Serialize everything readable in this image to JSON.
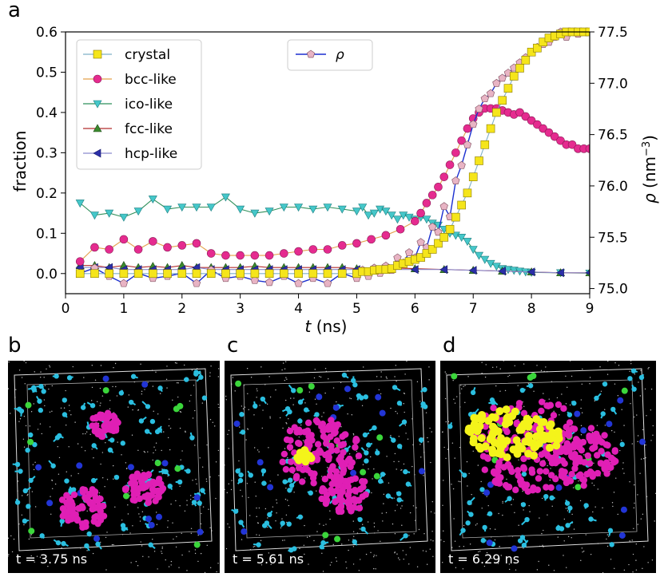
{
  "figure": {
    "panel_a_letter": "a",
    "panel_b_letter": "b",
    "panel_c_letter": "c",
    "panel_d_letter": "d",
    "snapshots": [
      {
        "label": "t = 3.75 ns"
      },
      {
        "label": "t = 5.61 ns"
      },
      {
        "label": "t = 6.29 ns"
      }
    ]
  },
  "colors": {
    "crystal": "#f5e51b",
    "bcc": "#e52b8f",
    "ico": "#45c7c9",
    "fcc": "#3b8a2e",
    "hcp": "#2b2fa8",
    "rho_line": "#1b2fd0",
    "rho_marker": "#e8b4c4"
  },
  "chart_data": {
    "type": "line",
    "xlabel_italic": "t",
    "xlabel_unit": " (ns)",
    "ylabel": "fraction",
    "y2label_symbol": "ρ",
    "y2label_unit": "(nm",
    "y2label_exp": "−3",
    "xlim": [
      0,
      9
    ],
    "ylim": [
      -0.05,
      0.6
    ],
    "y2lim": [
      74.95,
      77.5
    ],
    "xticks": [
      "0",
      "1",
      "2",
      "3",
      "4",
      "5",
      "6",
      "7",
      "8",
      "9"
    ],
    "yticks": [
      "0.0",
      "0.1",
      "0.2",
      "0.3",
      "0.4",
      "0.5",
      "0.6"
    ],
    "y2ticks": [
      "75.0",
      "75.5",
      "76.0",
      "76.5",
      "77.0",
      "77.5"
    ],
    "legend_left": [
      "crystal",
      "bcc-like",
      "ico-like",
      "fcc-like",
      "hcp-like"
    ],
    "legend_right": [
      "ρ"
    ],
    "series": [
      {
        "name": "crystal",
        "axis": "left",
        "x": [
          0.25,
          0.5,
          0.75,
          1,
          1.25,
          1.5,
          1.75,
          2,
          2.25,
          2.5,
          2.75,
          3,
          3.25,
          3.5,
          3.75,
          4,
          4.25,
          4.5,
          4.75,
          5,
          5.1,
          5.2,
          5.3,
          5.4,
          5.5,
          5.6,
          5.7,
          5.8,
          5.9,
          6,
          6.1,
          6.2,
          6.3,
          6.4,
          6.5,
          6.6,
          6.7,
          6.8,
          6.9,
          7,
          7.1,
          7.2,
          7.3,
          7.4,
          7.5,
          7.6,
          7.7,
          7.8,
          7.9,
          8,
          8.1,
          8.2,
          8.3,
          8.4,
          8.5,
          8.6,
          8.7,
          8.8,
          8.9,
          9
        ],
        "y": [
          0,
          0,
          0,
          0,
          0,
          0,
          0,
          0,
          0,
          0,
          0,
          0,
          0,
          0,
          0,
          0,
          0,
          0,
          0,
          0,
          0.005,
          0.005,
          0.008,
          0.01,
          0.01,
          0.012,
          0.02,
          0.025,
          0.03,
          0.035,
          0.04,
          0.05,
          0.06,
          0.075,
          0.09,
          0.11,
          0.14,
          0.17,
          0.2,
          0.24,
          0.28,
          0.32,
          0.36,
          0.4,
          0.43,
          0.46,
          0.49,
          0.51,
          0.53,
          0.55,
          0.56,
          0.575,
          0.585,
          0.59,
          0.595,
          0.6,
          0.6,
          0.6,
          0.6,
          0.6
        ]
      },
      {
        "name": "bcc-like",
        "axis": "left",
        "x": [
          0.25,
          0.5,
          0.75,
          1,
          1.25,
          1.5,
          1.75,
          2,
          2.25,
          2.5,
          2.75,
          3,
          3.25,
          3.5,
          3.75,
          4,
          4.25,
          4.5,
          4.75,
          5,
          5.25,
          5.5,
          5.75,
          6,
          6.1,
          6.2,
          6.3,
          6.4,
          6.5,
          6.6,
          6.7,
          6.8,
          6.9,
          7,
          7.1,
          7.2,
          7.3,
          7.4,
          7.5,
          7.6,
          7.7,
          7.8,
          7.9,
          8,
          8.1,
          8.2,
          8.3,
          8.4,
          8.5,
          8.6,
          8.7,
          8.8,
          8.9,
          9
        ],
        "y": [
          0.03,
          0.065,
          0.06,
          0.085,
          0.06,
          0.08,
          0.065,
          0.07,
          0.075,
          0.05,
          0.045,
          0.045,
          0.045,
          0.045,
          0.05,
          0.055,
          0.06,
          0.06,
          0.07,
          0.075,
          0.085,
          0.095,
          0.11,
          0.13,
          0.15,
          0.175,
          0.195,
          0.215,
          0.24,
          0.27,
          0.3,
          0.33,
          0.36,
          0.385,
          0.4,
          0.41,
          0.41,
          0.41,
          0.405,
          0.4,
          0.395,
          0.4,
          0.39,
          0.38,
          0.37,
          0.36,
          0.35,
          0.34,
          0.33,
          0.32,
          0.32,
          0.31,
          0.31,
          0.31
        ]
      },
      {
        "name": "ico-like",
        "axis": "left",
        "x": [
          0.25,
          0.5,
          0.75,
          1,
          1.25,
          1.5,
          1.75,
          2,
          2.25,
          2.5,
          2.75,
          3,
          3.25,
          3.5,
          3.75,
          4,
          4.25,
          4.5,
          4.75,
          5,
          5.1,
          5.2,
          5.3,
          5.4,
          5.5,
          5.6,
          5.7,
          5.8,
          5.9,
          6,
          6.1,
          6.2,
          6.3,
          6.4,
          6.5,
          6.6,
          6.7,
          6.8,
          6.9,
          7,
          7.1,
          7.2,
          7.3,
          7.4,
          7.5,
          7.6,
          7.7,
          7.8,
          7.9,
          8,
          8.5,
          9
        ],
        "y": [
          0.175,
          0.145,
          0.15,
          0.14,
          0.155,
          0.185,
          0.16,
          0.165,
          0.165,
          0.165,
          0.19,
          0.16,
          0.15,
          0.155,
          0.165,
          0.165,
          0.16,
          0.165,
          0.16,
          0.155,
          0.165,
          0.145,
          0.15,
          0.16,
          0.155,
          0.145,
          0.135,
          0.145,
          0.14,
          0.135,
          0.14,
          0.135,
          0.125,
          0.12,
          0.11,
          0.1,
          0.095,
          0.09,
          0.08,
          0.06,
          0.045,
          0.035,
          0.025,
          0.018,
          0.012,
          0.01,
          0.008,
          0.006,
          0.004,
          0.003,
          0.002,
          0.001
        ]
      },
      {
        "name": "fcc-like",
        "axis": "left",
        "x": [
          0.25,
          0.5,
          0.75,
          1,
          1.25,
          1.5,
          1.75,
          2,
          2.25,
          2.5,
          2.75,
          3,
          3.25,
          3.5,
          3.75,
          4,
          4.25,
          4.5,
          4.75,
          5,
          5.5,
          6,
          6.5,
          7,
          7.5,
          8,
          8.5,
          9
        ],
        "y": [
          0.02,
          0.02,
          0.015,
          0.02,
          0.015,
          0.018,
          0.015,
          0.02,
          0.015,
          0.015,
          0.015,
          0.015,
          0.018,
          0.015,
          0.015,
          0.015,
          0.015,
          0.015,
          0.015,
          0.012,
          0.015,
          0.012,
          0.01,
          0.008,
          0.006,
          0.004,
          0.002,
          0.002
        ]
      },
      {
        "name": "hcp-like",
        "axis": "left",
        "x": [
          0.25,
          0.5,
          0.75,
          1,
          1.25,
          1.5,
          1.75,
          2,
          2.25,
          2.5,
          2.75,
          3,
          3.25,
          3.5,
          3.75,
          4,
          4.25,
          4.5,
          4.75,
          5,
          5.5,
          6,
          6.5,
          7,
          7.5,
          8,
          8.5,
          9
        ],
        "y": [
          0.015,
          0.015,
          0.015,
          0.01,
          0.01,
          0.01,
          0.01,
          0.01,
          0.015,
          0.01,
          0.01,
          0.01,
          0.01,
          0.01,
          0.01,
          0.01,
          0.01,
          0.01,
          0.01,
          0.01,
          0.01,
          0.01,
          0.01,
          0.008,
          0.006,
          0.004,
          0.002,
          0.002
        ]
      },
      {
        "name": "ρ",
        "axis": "right",
        "x": [
          0.25,
          0.5,
          0.75,
          1,
          1.25,
          1.5,
          1.75,
          2,
          2.25,
          2.5,
          2.75,
          3,
          3.25,
          3.5,
          3.75,
          4,
          4.25,
          4.5,
          4.75,
          5,
          5.1,
          5.2,
          5.3,
          5.4,
          5.5,
          5.6,
          5.7,
          5.8,
          5.9,
          6,
          6.1,
          6.2,
          6.3,
          6.4,
          6.5,
          6.6,
          6.7,
          6.8,
          6.9,
          7,
          7.1,
          7.2,
          7.3,
          7.4,
          7.5,
          7.6,
          7.7,
          7.8,
          7.9,
          8,
          8.1,
          8.2,
          8.3,
          8.4,
          8.5,
          8.6,
          8.7,
          8.8,
          8.9,
          9
        ],
        "y": [
          75.15,
          75.2,
          75.12,
          75.05,
          75.15,
          75.1,
          75.12,
          75.15,
          75.05,
          75.18,
          75.1,
          75.12,
          75.08,
          75.06,
          75.12,
          75.05,
          75.1,
          75.05,
          75.15,
          75.1,
          75.18,
          75.12,
          75.2,
          75.15,
          75.22,
          75.18,
          75.3,
          75.25,
          75.35,
          75.3,
          75.45,
          75.4,
          75.6,
          75.55,
          75.8,
          75.7,
          76.05,
          76.2,
          76.4,
          76.6,
          76.75,
          76.85,
          76.9,
          77.0,
          77.05,
          77.1,
          77.15,
          77.2,
          77.25,
          77.3,
          77.35,
          77.38,
          77.4,
          77.45,
          77.5,
          77.45,
          77.5,
          77.48,
          77.5,
          77.5
        ]
      }
    ]
  }
}
